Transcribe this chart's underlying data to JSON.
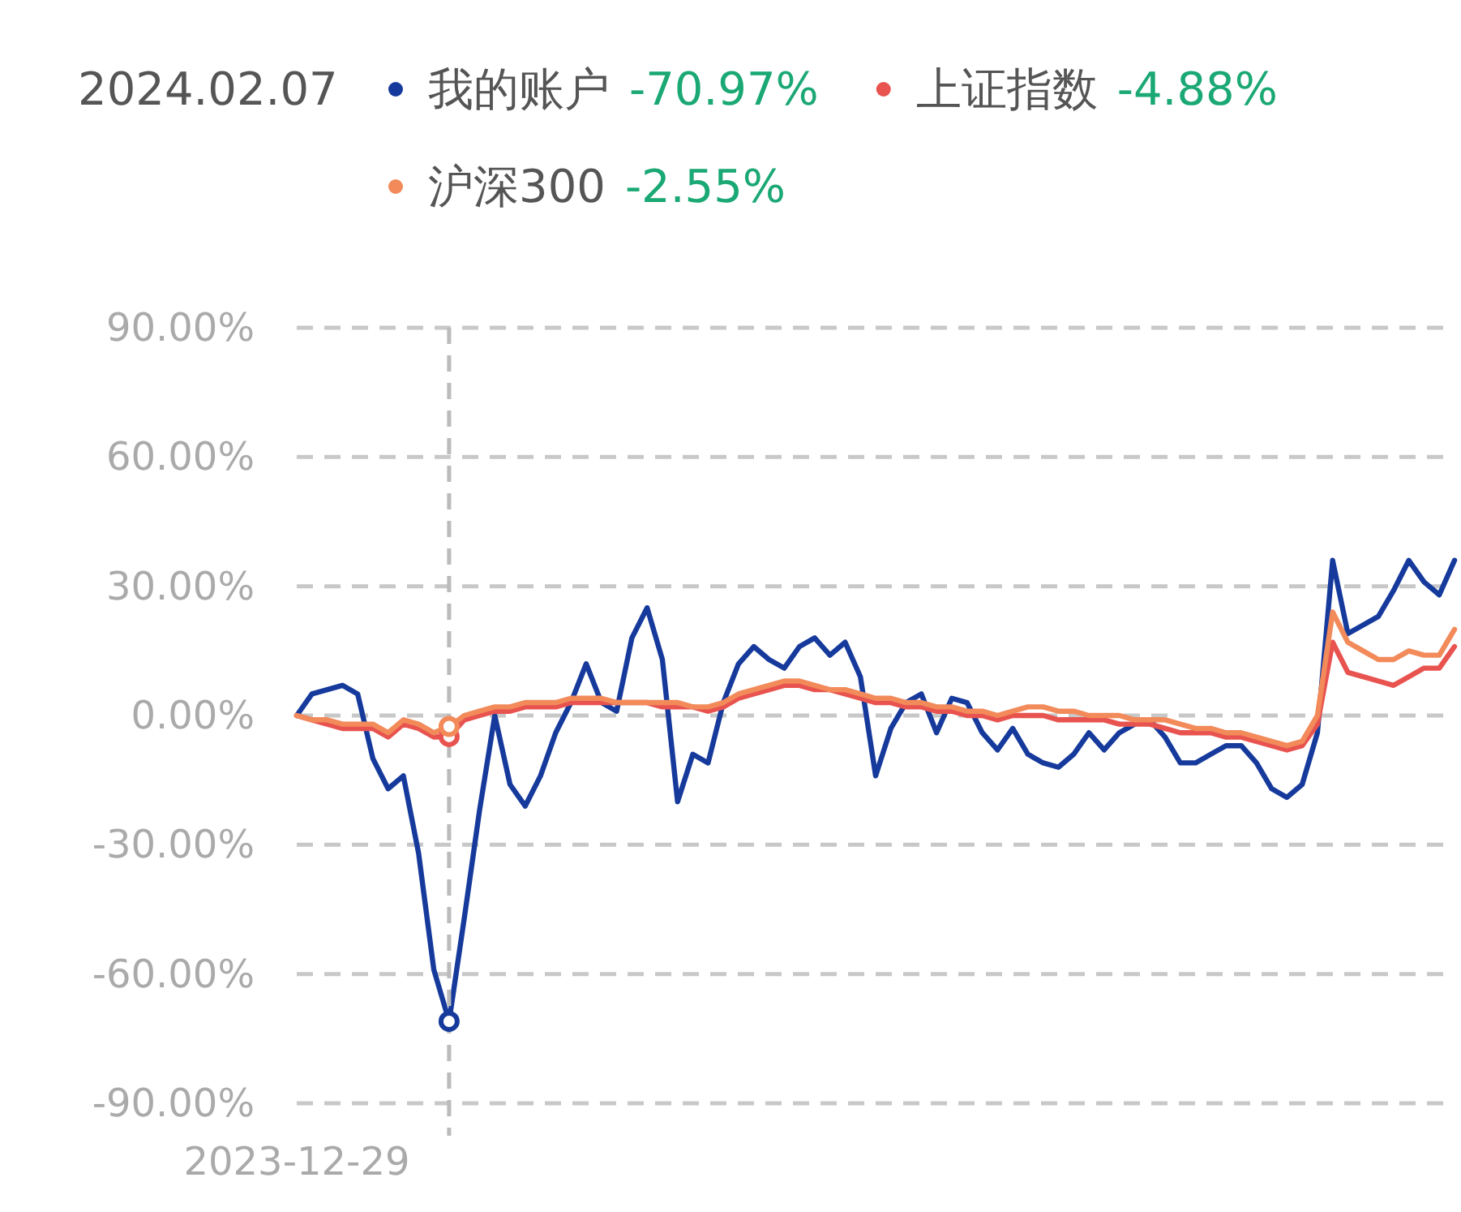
{
  "chart_data": {
    "type": "line",
    "title": "2024.02.07",
    "legend": "top",
    "grid": "y",
    "categories": [
      "2023-12-29",
      null,
      null,
      null,
      null,
      null,
      null,
      null,
      null,
      null,
      null,
      null,
      null,
      null,
      null,
      null,
      null,
      null,
      null,
      null,
      null,
      null,
      null,
      null,
      null,
      null,
      null,
      null,
      null,
      null,
      null,
      null,
      null,
      null,
      null,
      null,
      null,
      null,
      null,
      null,
      null,
      null,
      null,
      null,
      null,
      null,
      null,
      null,
      null,
      null,
      null,
      null,
      null,
      null,
      null,
      null,
      null,
      null,
      null,
      null,
      null,
      null,
      null,
      null,
      null,
      null,
      null,
      null,
      null,
      null,
      null,
      null,
      null,
      null,
      null,
      null,
      null
    ],
    "ylim": [
      -90,
      90
    ],
    "yticks": [
      {
        "value": -90,
        "label": "-90.00%"
      },
      {
        "value": -60,
        "label": "-60.00%"
      },
      {
        "value": -30,
        "label": "-30.00%"
      },
      {
        "value": 0,
        "label": "0.00%"
      },
      {
        "value": 30,
        "label": "30.00%"
      },
      {
        "value": 60,
        "label": "60.00%"
      },
      {
        "value": 90,
        "label": "90.00%"
      }
    ],
    "annotations": [
      "-70.97%",
      "-4.88%",
      "-2.55%"
    ],
    "series": [
      {
        "name": "我的账户",
        "color": "#163a9c",
        "values": [
          0,
          5,
          6,
          7,
          5,
          -10,
          -17,
          -14,
          -32,
          -59,
          -70.97,
          -47,
          -22,
          0,
          -16,
          -21,
          -14,
          -4,
          3,
          12,
          3,
          1,
          18,
          25,
          13,
          -20,
          -9,
          -11,
          3,
          12,
          16,
          13,
          11,
          16,
          18,
          14,
          17,
          9,
          -14,
          -3,
          3,
          5,
          -4,
          4,
          3,
          -4,
          -8,
          -3,
          -9,
          -11,
          -12,
          -9,
          -4,
          -8,
          -4,
          -2,
          -1,
          -5,
          -11,
          -11,
          -9,
          -7,
          -7,
          -11,
          -17,
          -19,
          -16,
          -4,
          36,
          19,
          21,
          23,
          29,
          36,
          31,
          28,
          36
        ]
      },
      {
        "name": "上证指数",
        "color": "#e8534f",
        "values": [
          0,
          -1,
          -2,
          -3,
          -3,
          -3,
          -5,
          -2,
          -3,
          -5,
          -4.88,
          -1,
          0,
          1,
          1,
          2,
          2,
          2,
          3,
          3,
          3,
          3,
          3,
          3,
          2,
          2,
          2,
          1,
          2,
          4,
          5,
          6,
          7,
          7,
          6,
          6,
          5,
          4,
          3,
          3,
          2,
          2,
          1,
          1,
          0,
          0,
          -1,
          0,
          0,
          0,
          -1,
          -1,
          -1,
          -1,
          -2,
          -2,
          -2,
          -3,
          -4,
          -4,
          -4,
          -5,
          -5,
          -6,
          -7,
          -8,
          -7,
          -2,
          17,
          10,
          9,
          8,
          7,
          9,
          11,
          11,
          16
        ]
      },
      {
        "name": "沪深300",
        "color": "#f28a5a",
        "values": [
          0,
          -1,
          -1,
          -2,
          -2,
          -2,
          -4,
          -1,
          -2,
          -4,
          -2.55,
          0,
          1,
          2,
          2,
          3,
          3,
          3,
          4,
          4,
          4,
          3,
          3,
          3,
          3,
          3,
          2,
          2,
          3,
          5,
          6,
          7,
          8,
          8,
          7,
          6,
          6,
          5,
          4,
          4,
          3,
          3,
          2,
          2,
          1,
          1,
          0,
          1,
          2,
          2,
          1,
          1,
          0,
          0,
          0,
          -1,
          -1,
          -1,
          -2,
          -3,
          -3,
          -4,
          -4,
          -5,
          -6,
          -7,
          -6,
          0,
          24,
          17,
          15,
          13,
          13,
          15,
          14,
          14,
          20
        ]
      }
    ]
  }
}
